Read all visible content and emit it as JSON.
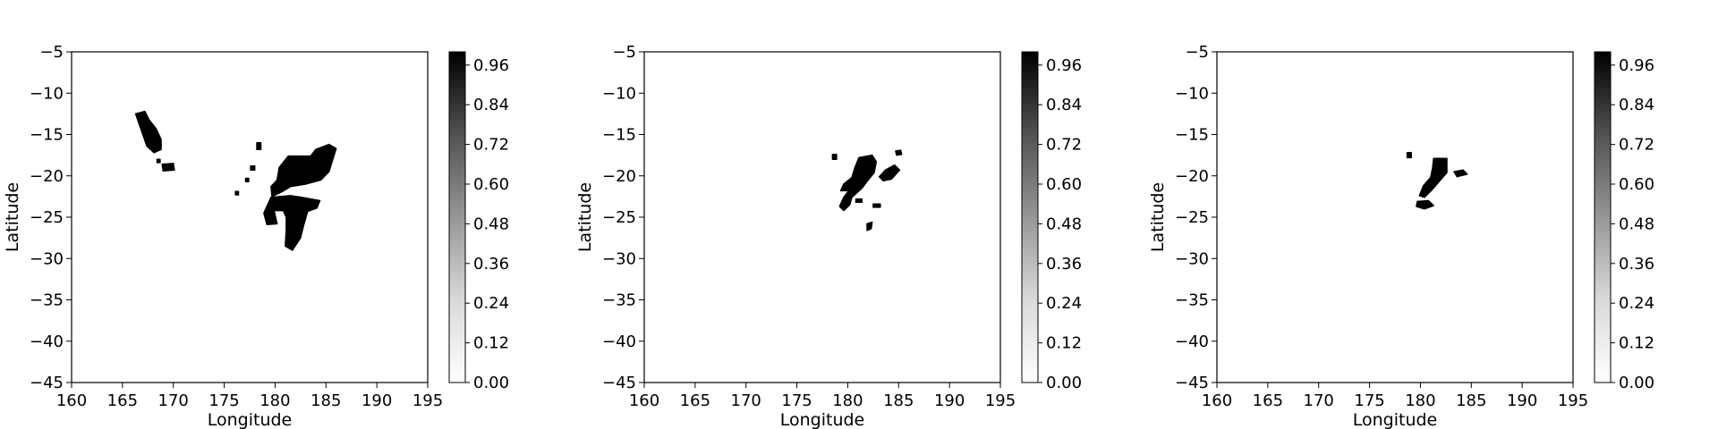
{
  "chart_data": [
    {
      "type": "heatmap",
      "xlabel": "Longitude",
      "ylabel": "Latitude",
      "xlim": [
        160,
        195
      ],
      "ylim": [
        -45,
        -5
      ],
      "xticks": [
        "160",
        "165",
        "170",
        "175",
        "180",
        "185",
        "190",
        "195"
      ],
      "yticks": [
        "−5",
        "−10",
        "−15",
        "−20",
        "−25",
        "−30",
        "−35",
        "−40",
        "−45"
      ],
      "colorbar": {
        "colormap": "Greys",
        "range": [
          0,
          1
        ],
        "ticks": [
          "0.00",
          "0.12",
          "0.24",
          "0.36",
          "0.48",
          "0.60",
          "0.72",
          "0.84",
          "0.96"
        ]
      },
      "regions": [
        {
          "value": 1,
          "polygon": [
            [
              166.3,
              -12.5
            ],
            [
              167.2,
              -12.2
            ],
            [
              167.6,
              -13.2
            ],
            [
              168.3,
              -14.3
            ],
            [
              168.8,
              -15.6
            ],
            [
              168.8,
              -16.8
            ],
            [
              168.1,
              -17.2
            ],
            [
              167.4,
              -16.4
            ],
            [
              167.0,
              -15.0
            ],
            [
              166.6,
              -13.6
            ]
          ]
        },
        {
          "value": 1,
          "polygon": [
            [
              168.9,
              -18.6
            ],
            [
              170.0,
              -18.5
            ],
            [
              170.1,
              -19.3
            ],
            [
              169.0,
              -19.4
            ]
          ]
        },
        {
          "value": 1,
          "polygon": [
            [
              181.3,
              -17.6
            ],
            [
              183.5,
              -17.6
            ],
            [
              184.0,
              -16.8
            ],
            [
              185.3,
              -16.2
            ],
            [
              186.0,
              -16.7
            ],
            [
              185.6,
              -18.3
            ],
            [
              185.3,
              -19.5
            ],
            [
              184.5,
              -20.5
            ],
            [
              183.0,
              -21.0
            ],
            [
              181.5,
              -21.3
            ],
            [
              180.7,
              -21.9
            ],
            [
              179.7,
              -22.5
            ],
            [
              179.6,
              -21.3
            ],
            [
              180.2,
              -20.5
            ],
            [
              180.4,
              -19.0
            ]
          ]
        },
        {
          "value": 1,
          "polygon": [
            [
              179.6,
              -22.6
            ],
            [
              181.5,
              -22.4
            ],
            [
              182.6,
              -22.6
            ],
            [
              184.4,
              -23.0
            ],
            [
              184.1,
              -23.9
            ],
            [
              183.2,
              -24.3
            ],
            [
              182.8,
              -26.0
            ],
            [
              182.5,
              -27.5
            ],
            [
              181.7,
              -29.0
            ],
            [
              181.0,
              -28.5
            ],
            [
              181.1,
              -26.5
            ],
            [
              181.1,
              -25.0
            ],
            [
              180.8,
              -24.2
            ],
            [
              179.9,
              -24.2
            ],
            [
              180.2,
              -25.8
            ],
            [
              179.2,
              -25.9
            ],
            [
              178.9,
              -24.5
            ],
            [
              179.3,
              -23.4
            ]
          ]
        },
        {
          "value": 1,
          "polygon": [
            [
              178.2,
              -16.0
            ],
            [
              178.6,
              -16.0
            ],
            [
              178.6,
              -16.8
            ],
            [
              178.2,
              -16.8
            ]
          ]
        },
        {
          "value": 1,
          "polygon": [
            [
              177.6,
              -18.8
            ],
            [
              178.0,
              -18.8
            ],
            [
              178.0,
              -19.3
            ],
            [
              177.6,
              -19.3
            ]
          ]
        },
        {
          "value": 1,
          "polygon": [
            [
              177.1,
              -20.3
            ],
            [
              177.4,
              -20.3
            ],
            [
              177.4,
              -20.7
            ],
            [
              177.1,
              -20.7
            ]
          ]
        },
        {
          "value": 1,
          "polygon": [
            [
              176.1,
              -21.9
            ],
            [
              176.4,
              -21.9
            ],
            [
              176.4,
              -22.3
            ],
            [
              176.1,
              -22.3
            ]
          ]
        },
        {
          "value": 1,
          "polygon": [
            [
              168.4,
              -18.0
            ],
            [
              168.7,
              -18.0
            ],
            [
              168.7,
              -18.4
            ],
            [
              168.4,
              -18.4
            ]
          ]
        }
      ]
    },
    {
      "type": "heatmap",
      "xlabel": "Longitude",
      "ylabel": "Latitude",
      "xlim": [
        160,
        195
      ],
      "ylim": [
        -45,
        -5
      ],
      "xticks": [
        "160",
        "165",
        "170",
        "175",
        "180",
        "185",
        "190",
        "195"
      ],
      "yticks": [
        "−5",
        "−10",
        "−15",
        "−20",
        "−25",
        "−30",
        "−35",
        "−40",
        "−45"
      ],
      "colorbar": {
        "colormap": "Greys",
        "range": [
          0,
          1
        ],
        "ticks": [
          "0.00",
          "0.12",
          "0.24",
          "0.36",
          "0.48",
          "0.60",
          "0.72",
          "0.84",
          "0.96"
        ]
      },
      "regions": [
        {
          "value": 1,
          "polygon": [
            [
              181.1,
              -17.8
            ],
            [
              182.4,
              -17.5
            ],
            [
              182.8,
              -18.3
            ],
            [
              182.6,
              -19.6
            ],
            [
              182.0,
              -20.5
            ],
            [
              181.4,
              -21.5
            ],
            [
              180.4,
              -22.6
            ],
            [
              180.2,
              -23.5
            ],
            [
              179.6,
              -24.2
            ],
            [
              179.2,
              -23.7
            ],
            [
              179.6,
              -22.6
            ],
            [
              180.1,
              -21.8
            ],
            [
              179.3,
              -21.8
            ],
            [
              179.6,
              -21.0
            ],
            [
              180.4,
              -20.2
            ],
            [
              180.7,
              -19.0
            ]
          ]
        },
        {
          "value": 1,
          "polygon": [
            [
              183.7,
              -19.3
            ],
            [
              184.6,
              -18.7
            ],
            [
              185.1,
              -19.3
            ],
            [
              184.3,
              -20.4
            ],
            [
              183.5,
              -20.6
            ],
            [
              183.1,
              -20.1
            ]
          ]
        },
        {
          "value": 1,
          "polygon": [
            [
              178.5,
              -17.4
            ],
            [
              178.9,
              -17.4
            ],
            [
              178.9,
              -18.0
            ],
            [
              178.5,
              -18.0
            ]
          ]
        },
        {
          "value": 1,
          "polygon": [
            [
              184.7,
              -17.0
            ],
            [
              185.2,
              -16.9
            ],
            [
              185.3,
              -17.4
            ],
            [
              184.8,
              -17.5
            ]
          ]
        },
        {
          "value": 1,
          "polygon": [
            [
              182.5,
              -23.4
            ],
            [
              183.2,
              -23.4
            ],
            [
              183.2,
              -23.8
            ],
            [
              182.5,
              -23.8
            ]
          ]
        },
        {
          "value": 1,
          "polygon": [
            [
              181.9,
              -25.8
            ],
            [
              182.4,
              -25.6
            ],
            [
              182.3,
              -26.4
            ],
            [
              181.9,
              -26.6
            ]
          ]
        },
        {
          "value": 1,
          "polygon": [
            [
              180.8,
              -22.8
            ],
            [
              181.4,
              -22.8
            ],
            [
              181.4,
              -23.2
            ],
            [
              180.8,
              -23.2
            ]
          ]
        }
      ]
    },
    {
      "type": "heatmap",
      "xlabel": "Longitude",
      "ylabel": "Latitude",
      "xlim": [
        160,
        195
      ],
      "ylim": [
        -45,
        -5
      ],
      "xticks": [
        "160",
        "165",
        "170",
        "175",
        "180",
        "185",
        "190",
        "195"
      ],
      "yticks": [
        "−5",
        "−10",
        "−15",
        "−20",
        "−25",
        "−30",
        "−35",
        "−40",
        "−45"
      ],
      "colorbar": {
        "colormap": "Greys",
        "range": [
          0,
          1
        ],
        "ticks": [
          "0.00",
          "0.12",
          "0.24",
          "0.36",
          "0.48",
          "0.60",
          "0.72",
          "0.84",
          "0.96"
        ]
      },
      "regions": [
        {
          "value": 1,
          "polygon": [
            [
              181.3,
              -17.9
            ],
            [
              182.6,
              -17.9
            ],
            [
              182.6,
              -19.6
            ],
            [
              181.9,
              -20.6
            ],
            [
              181.2,
              -21.6
            ],
            [
              180.4,
              -22.6
            ],
            [
              179.9,
              -22.4
            ],
            [
              180.3,
              -21.2
            ],
            [
              181.0,
              -20.2
            ],
            [
              181.2,
              -19.0
            ]
          ]
        },
        {
          "value": 1,
          "polygon": [
            [
              179.7,
              -23.1
            ],
            [
              180.8,
              -23.0
            ],
            [
              181.3,
              -23.6
            ],
            [
              180.4,
              -24.0
            ],
            [
              179.6,
              -23.7
            ]
          ]
        },
        {
          "value": 1,
          "polygon": [
            [
              183.3,
              -19.5
            ],
            [
              184.2,
              -19.3
            ],
            [
              184.6,
              -19.8
            ],
            [
              183.6,
              -20.1
            ]
          ]
        },
        {
          "value": 1,
          "polygon": [
            [
              178.7,
              -17.2
            ],
            [
              179.1,
              -17.2
            ],
            [
              179.1,
              -17.8
            ],
            [
              178.7,
              -17.8
            ]
          ]
        }
      ]
    }
  ]
}
